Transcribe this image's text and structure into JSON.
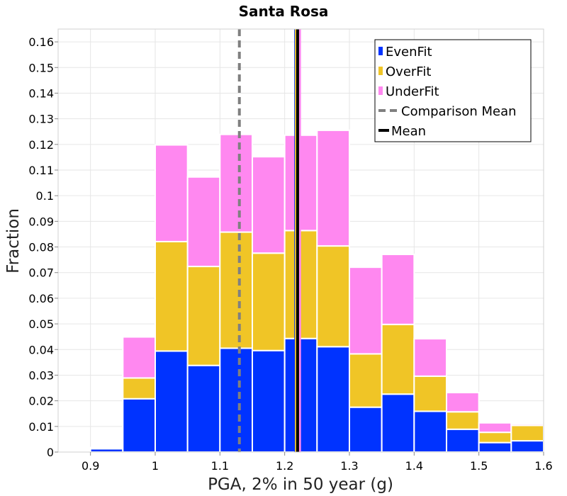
{
  "chart_data": {
    "type": "bar",
    "stacked": true,
    "title": "Santa Rosa",
    "xlabel": "PGA, 2% in 50 year (g)",
    "ylabel": "Fraction",
    "xlim": [
      0.85,
      1.6
    ],
    "ylim": [
      0,
      0.165
    ],
    "grid": true,
    "legend_position": "top-right",
    "x_ticks": [
      0.9,
      1,
      1.1,
      1.2,
      1.3,
      1.4,
      1.5,
      1.6
    ],
    "x_tick_labels": [
      "0.9",
      "1",
      "1.1",
      "1.2",
      "1.3",
      "1.4",
      "1.5",
      "1.6"
    ],
    "y_ticks": [
      0,
      0.01,
      0.02,
      0.03,
      0.04,
      0.05,
      0.06,
      0.07,
      0.08,
      0.09,
      0.1,
      0.11,
      0.12,
      0.13,
      0.14,
      0.15,
      0.16
    ],
    "y_tick_labels": [
      "0",
      "0.01",
      "0.02",
      "0.03",
      "0.04",
      "0.05",
      "0.06",
      "0.07",
      "0.08",
      "0.09",
      "0.1",
      "0.11",
      "0.12",
      "0.13",
      "0.14",
      "0.15",
      "0.16"
    ],
    "bin_width": 0.05,
    "bin_centers": [
      0.875,
      0.925,
      0.975,
      1.025,
      1.075,
      1.125,
      1.175,
      1.225,
      1.275,
      1.325,
      1.375,
      1.425,
      1.475,
      1.525,
      1.575
    ],
    "series": [
      {
        "name": "EvenFit",
        "color": "#0033ff",
        "values": [
          0.0002,
          0.0013,
          0.0208,
          0.0394,
          0.0338,
          0.0405,
          0.0396,
          0.0443,
          0.0411,
          0.0175,
          0.0226,
          0.0159,
          0.0089,
          0.0037,
          0.0044
        ]
      },
      {
        "name": "OverFit",
        "color": "#f0c526",
        "values": [
          0.0001,
          0.0001,
          0.0081,
          0.0427,
          0.0386,
          0.0453,
          0.038,
          0.0421,
          0.0393,
          0.0208,
          0.0272,
          0.0137,
          0.0068,
          0.004,
          0.006
        ]
      },
      {
        "name": "UnderFit",
        "color": "#ff88f0",
        "values": [
          0.0004,
          0.0004,
          0.016,
          0.0377,
          0.0349,
          0.0381,
          0.0376,
          0.0372,
          0.0451,
          0.0338,
          0.0273,
          0.0146,
          0.0075,
          0.0037,
          0.0006
        ]
      }
    ],
    "lines": [
      {
        "name": "Comparison Mean",
        "x": 1.13,
        "style": "dashed",
        "color": "#808080"
      },
      {
        "name": "Mean",
        "x": 1.22,
        "style": "solid",
        "color": "#000000"
      }
    ],
    "series_mean_lines": [
      {
        "name": "EvenFit",
        "x": 1.217,
        "color": "#0033ff"
      },
      {
        "name": "OverFit",
        "x": 1.218,
        "color": "#f0c526"
      },
      {
        "name": "UnderFit",
        "x": 1.223,
        "color": "#ff88f0"
      }
    ],
    "legend": [
      "EvenFit",
      "OverFit",
      "UnderFit",
      "Comparison Mean",
      "Mean"
    ]
  }
}
